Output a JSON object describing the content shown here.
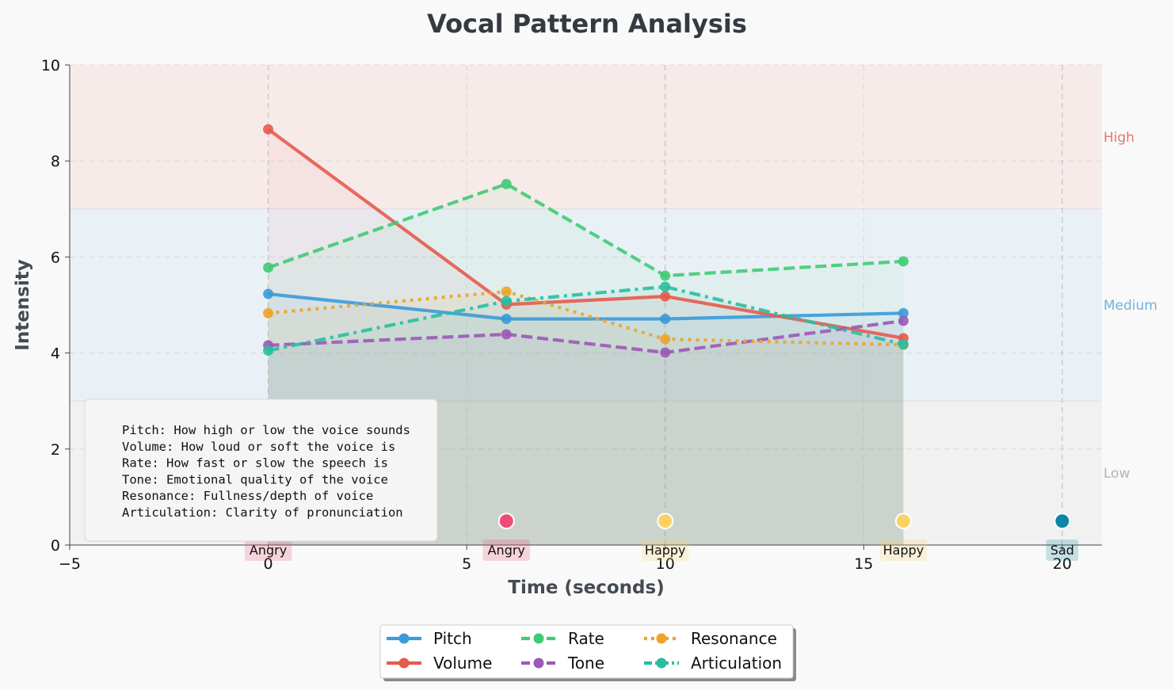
{
  "chart_data": {
    "type": "line",
    "title": "Vocal Pattern Analysis",
    "xlabel": "Time (seconds)",
    "ylabel": "Intensity",
    "xlim": [
      -5,
      21
    ],
    "ylim": [
      0,
      10
    ],
    "xticks": [
      -5,
      0,
      5,
      10,
      15,
      20
    ],
    "yticks": [
      0,
      2,
      4,
      6,
      8,
      10
    ],
    "grid": true,
    "x": [
      0,
      6,
      10,
      16
    ],
    "series": [
      {
        "name": "Pitch",
        "color": "#3b9ad9",
        "dash": "solid",
        "values": [
          5.23,
          4.71,
          4.71,
          4.83
        ]
      },
      {
        "name": "Volume",
        "color": "#e55b4e",
        "dash": "solid",
        "values": [
          8.66,
          5.01,
          5.18,
          4.31
        ]
      },
      {
        "name": "Rate",
        "color": "#3fcb75",
        "dash": "dashed",
        "values": [
          5.78,
          7.52,
          5.61,
          5.91
        ]
      },
      {
        "name": "Tone",
        "color": "#9b59b6",
        "dash": "dashed",
        "values": [
          4.16,
          4.39,
          4.01,
          4.67
        ]
      },
      {
        "name": "Resonance",
        "color": "#f0a22a",
        "dash": "dotted",
        "values": [
          4.83,
          5.28,
          4.29,
          4.17
        ]
      },
      {
        "name": "Articulation",
        "color": "#27bfa0",
        "dash": "dashdot",
        "values": [
          4.05,
          5.08,
          5.38,
          4.18
        ]
      }
    ],
    "zones": [
      {
        "label": "High",
        "from": 7,
        "to": 10,
        "color": "#e8766a"
      },
      {
        "label": "Medium",
        "from": 3,
        "to": 7,
        "color": "#6fb2e0"
      },
      {
        "label": "Low",
        "from": 0,
        "to": 3,
        "color": "#b5b5b5"
      }
    ],
    "emotions": [
      {
        "time": 0,
        "label": "Angry",
        "color": "#ec4d75"
      },
      {
        "time": 6,
        "label": "Angry",
        "color": "#ec4d75"
      },
      {
        "time": 10,
        "label": "Happy",
        "color": "#fbd167"
      },
      {
        "time": 16,
        "label": "Happy",
        "color": "#fbd167"
      },
      {
        "time": 20,
        "label": "Sad",
        "color": "#0d86a6"
      }
    ],
    "notes": [
      "Pitch: How high or low the voice sounds",
      "Volume: How loud or soft the voice is",
      "Rate: How fast or slow the speech is",
      "Tone: Emotional quality of the voice",
      "Resonance: Fullness/depth of voice",
      "Articulation: Clarity of pronunciation"
    ],
    "legend_position": "bottom-center"
  }
}
